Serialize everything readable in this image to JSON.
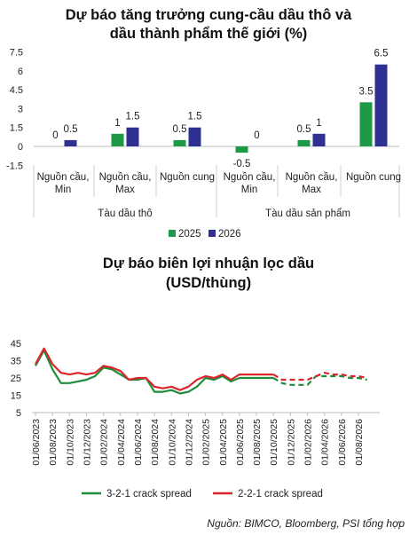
{
  "chart_data": [
    {
      "type": "bar",
      "title_line1": "Dự báo tăng trưởng cung-cầu dầu thô và",
      "title_line2": "dầu thành phẩm thế giới (%)",
      "y_ticks": [
        "7.5",
        "6",
        "4.5",
        "3",
        "1.5",
        "0",
        "-1.5"
      ],
      "ylim": [
        -1.5,
        7.5
      ],
      "groups": [
        {
          "label": "Tàu dầu thô",
          "categories": [
            [
              "Nguồn cầu,",
              "Min"
            ],
            [
              "Nguồn cầu,",
              "Max"
            ],
            [
              "Nguồn cung"
            ]
          ]
        },
        {
          "label": "Tàu dầu sản phẩm",
          "categories": [
            [
              "Nguồn cầu,",
              "Min"
            ],
            [
              "Nguồn cầu,",
              "Max"
            ],
            [
              "Nguồn cung"
            ]
          ]
        }
      ],
      "series": [
        {
          "name": "2025",
          "color": "#1e9a46",
          "values": [
            0,
            1,
            0.5,
            -0.5,
            0.5,
            3.5
          ],
          "labels": [
            "0",
            "1",
            "0.5",
            "-0.5",
            "0.5",
            "3.5"
          ]
        },
        {
          "name": "2026",
          "color": "#2e3192",
          "values": [
            0.5,
            1.5,
            1.5,
            0,
            1,
            6.5
          ],
          "labels": [
            "0.5",
            "1.5",
            "1.5",
            "0",
            "1",
            "6.5"
          ]
        }
      ],
      "legend_position": "bottom"
    },
    {
      "type": "line",
      "title_line1": "Dự báo biên lợi nhuận lọc dầu",
      "title_line2": "(USD/thùng)",
      "y_ticks": [
        "45",
        "35",
        "25",
        "15",
        "5"
      ],
      "ylim": [
        5,
        45
      ],
      "x_ticks": [
        "01/06/2023",
        "01/08/2023",
        "01/10/2023",
        "01/12/2023",
        "01/02/2024",
        "01/04/2024",
        "01/06/2024",
        "01/08/2024",
        "01/10/2024",
        "01/12/2024",
        "01/02/2025",
        "01/04/2025",
        "01/06/2025",
        "01/08/2025",
        "01/10/2025",
        "01/12/2025",
        "01/02/2026",
        "01/04/2026",
        "01/06/2026",
        "01/08/2026"
      ],
      "forecast_from": "01/10/2025",
      "series": [
        {
          "name": "3-2-1 crack spread",
          "color": "#1e8c3a",
          "x": [
            "01/06/2023",
            "01/07/2023",
            "01/08/2023",
            "01/09/2023",
            "01/10/2023",
            "01/11/2023",
            "01/12/2023",
            "01/01/2024",
            "01/02/2024",
            "01/03/2024",
            "01/04/2024",
            "01/05/2024",
            "01/06/2024",
            "01/07/2024",
            "01/08/2024",
            "01/09/2024",
            "01/10/2024",
            "01/11/2024",
            "01/12/2024",
            "01/01/2025",
            "01/02/2025",
            "01/03/2025",
            "01/04/2025",
            "01/05/2025",
            "01/06/2025",
            "01/07/2025",
            "01/08/2025",
            "01/09/2025",
            "01/10/2025",
            "01/11/2025",
            "01/12/2025",
            "01/01/2026",
            "01/02/2026",
            "01/03/2026",
            "01/04/2026",
            "01/05/2026",
            "01/06/2026",
            "01/07/2026",
            "01/08/2026",
            "01/09/2026"
          ],
          "y": [
            32,
            41,
            30,
            22,
            22,
            23,
            24,
            26,
            31,
            30,
            27,
            24,
            24,
            25,
            17,
            17,
            18,
            16,
            17,
            20,
            25,
            24,
            26,
            23,
            25,
            25,
            25,
            25,
            25,
            22,
            21,
            21,
            21,
            26,
            26,
            26,
            26,
            25,
            25,
            24
          ]
        },
        {
          "name": "2-2-1 crack spread",
          "color": "#d9262b",
          "x": [
            "01/06/2023",
            "01/07/2023",
            "01/08/2023",
            "01/09/2023",
            "01/10/2023",
            "01/11/2023",
            "01/12/2023",
            "01/01/2024",
            "01/02/2024",
            "01/03/2024",
            "01/04/2024",
            "01/05/2024",
            "01/06/2024",
            "01/07/2024",
            "01/08/2024",
            "01/09/2024",
            "01/10/2024",
            "01/11/2024",
            "01/12/2024",
            "01/01/2025",
            "01/02/2025",
            "01/03/2025",
            "01/04/2025",
            "01/05/2025",
            "01/06/2025",
            "01/07/2025",
            "01/08/2025",
            "01/09/2025",
            "01/10/2025",
            "01/11/2025",
            "01/12/2025",
            "01/01/2026",
            "01/02/2026",
            "01/03/2026",
            "01/04/2026",
            "01/05/2026",
            "01/06/2026",
            "01/07/2026",
            "01/08/2026",
            "01/09/2026"
          ],
          "y": [
            33,
            42,
            33,
            28,
            27,
            28,
            27,
            28,
            32,
            31,
            29,
            24,
            25,
            25,
            20,
            19,
            20,
            18,
            20,
            24,
            26,
            25,
            27,
            24,
            27,
            27,
            27,
            27,
            27,
            24,
            24,
            24,
            24,
            26,
            28,
            27,
            27,
            26,
            26,
            25
          ]
        }
      ],
      "legend_position": "bottom"
    }
  ],
  "source": "Nguồn: BIMCO, Bloomberg, PSI tổng hợp"
}
